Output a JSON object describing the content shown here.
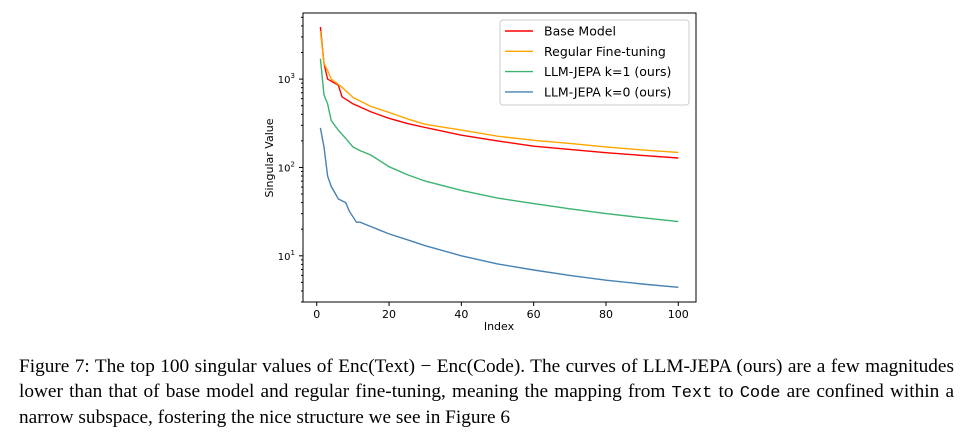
{
  "chart_data": {
    "type": "line",
    "xlabel": "Index",
    "ylabel": "Singular Value",
    "xlim": [
      -3.8,
      104.9
    ],
    "ylim": [
      3.0,
      5600
    ],
    "yscale": "log",
    "xticks": [
      0,
      20,
      40,
      60,
      80,
      100
    ],
    "xtick_labels": [
      "0",
      "20",
      "40",
      "60",
      "80",
      "100"
    ],
    "yticks": [
      10,
      100,
      1000
    ],
    "ytick_labels": [
      {
        "base": "10",
        "exp": "1"
      },
      {
        "base": "10",
        "exp": "2"
      },
      {
        "base": "10",
        "exp": "3"
      }
    ],
    "grid": false,
    "legend_position": "top-right",
    "series": [
      {
        "name": "Base Model",
        "color": "#ff0000",
        "x": [
          1,
          2,
          3,
          6,
          7,
          10,
          15,
          20,
          25,
          30,
          40,
          50,
          60,
          70,
          80,
          90,
          100
        ],
        "y": [
          3900,
          1500,
          1000,
          850,
          630,
          525,
          425,
          360,
          315,
          283,
          232,
          200,
          174,
          160,
          147,
          137,
          128
        ]
      },
      {
        "name": "Regular Fine-tuning",
        "color": "#ffa500",
        "x": [
          1,
          2,
          3,
          4,
          7,
          10,
          15,
          20,
          25,
          30,
          40,
          50,
          60,
          70,
          80,
          90,
          100
        ],
        "y": [
          3500,
          1500,
          1250,
          1000,
          810,
          620,
          490,
          420,
          355,
          308,
          265,
          226,
          203,
          187,
          171,
          158,
          148
        ]
      },
      {
        "name": "LLM-JEPA k=1 (ours)",
        "color": "#3cb371",
        "x": [
          1,
          2,
          3,
          4,
          6,
          8,
          10,
          12,
          15,
          20,
          25,
          30,
          40,
          50,
          60,
          70,
          80,
          90,
          100
        ],
        "y": [
          1700,
          665,
          525,
          340,
          263,
          213,
          171,
          155,
          138,
          102,
          83,
          70,
          55,
          45,
          39,
          34,
          30,
          27,
          24.4
        ]
      },
      {
        "name": "LLM-JEPA k=0 (ours)",
        "color": "#4682b4",
        "x": [
          1,
          2,
          3,
          4,
          6,
          8,
          9,
          11,
          12,
          15,
          20,
          25,
          30,
          40,
          50,
          60,
          70,
          80,
          90,
          100
        ],
        "y": [
          280,
          170,
          80,
          61,
          44,
          40,
          32,
          24,
          24,
          21.4,
          17.7,
          15.2,
          13,
          10,
          8.1,
          6.9,
          6.0,
          5.3,
          4.8,
          4.4
        ]
      }
    ]
  },
  "caption": {
    "label": "Figure 7:",
    "t1": " The top 100 singular values of ",
    "math": "Enc(Text) − Enc(Code)",
    "t2": ". The curves of LLM-JEPA (ours) are a few magnitudes lower than that of base model and regular fine-tuning, meaning the mapping from ",
    "code1": "Text",
    "t3": " to ",
    "code2": "Code",
    "t4": " are confined within a narrow subspace, fostering the nice structure we see in Figure 6"
  }
}
